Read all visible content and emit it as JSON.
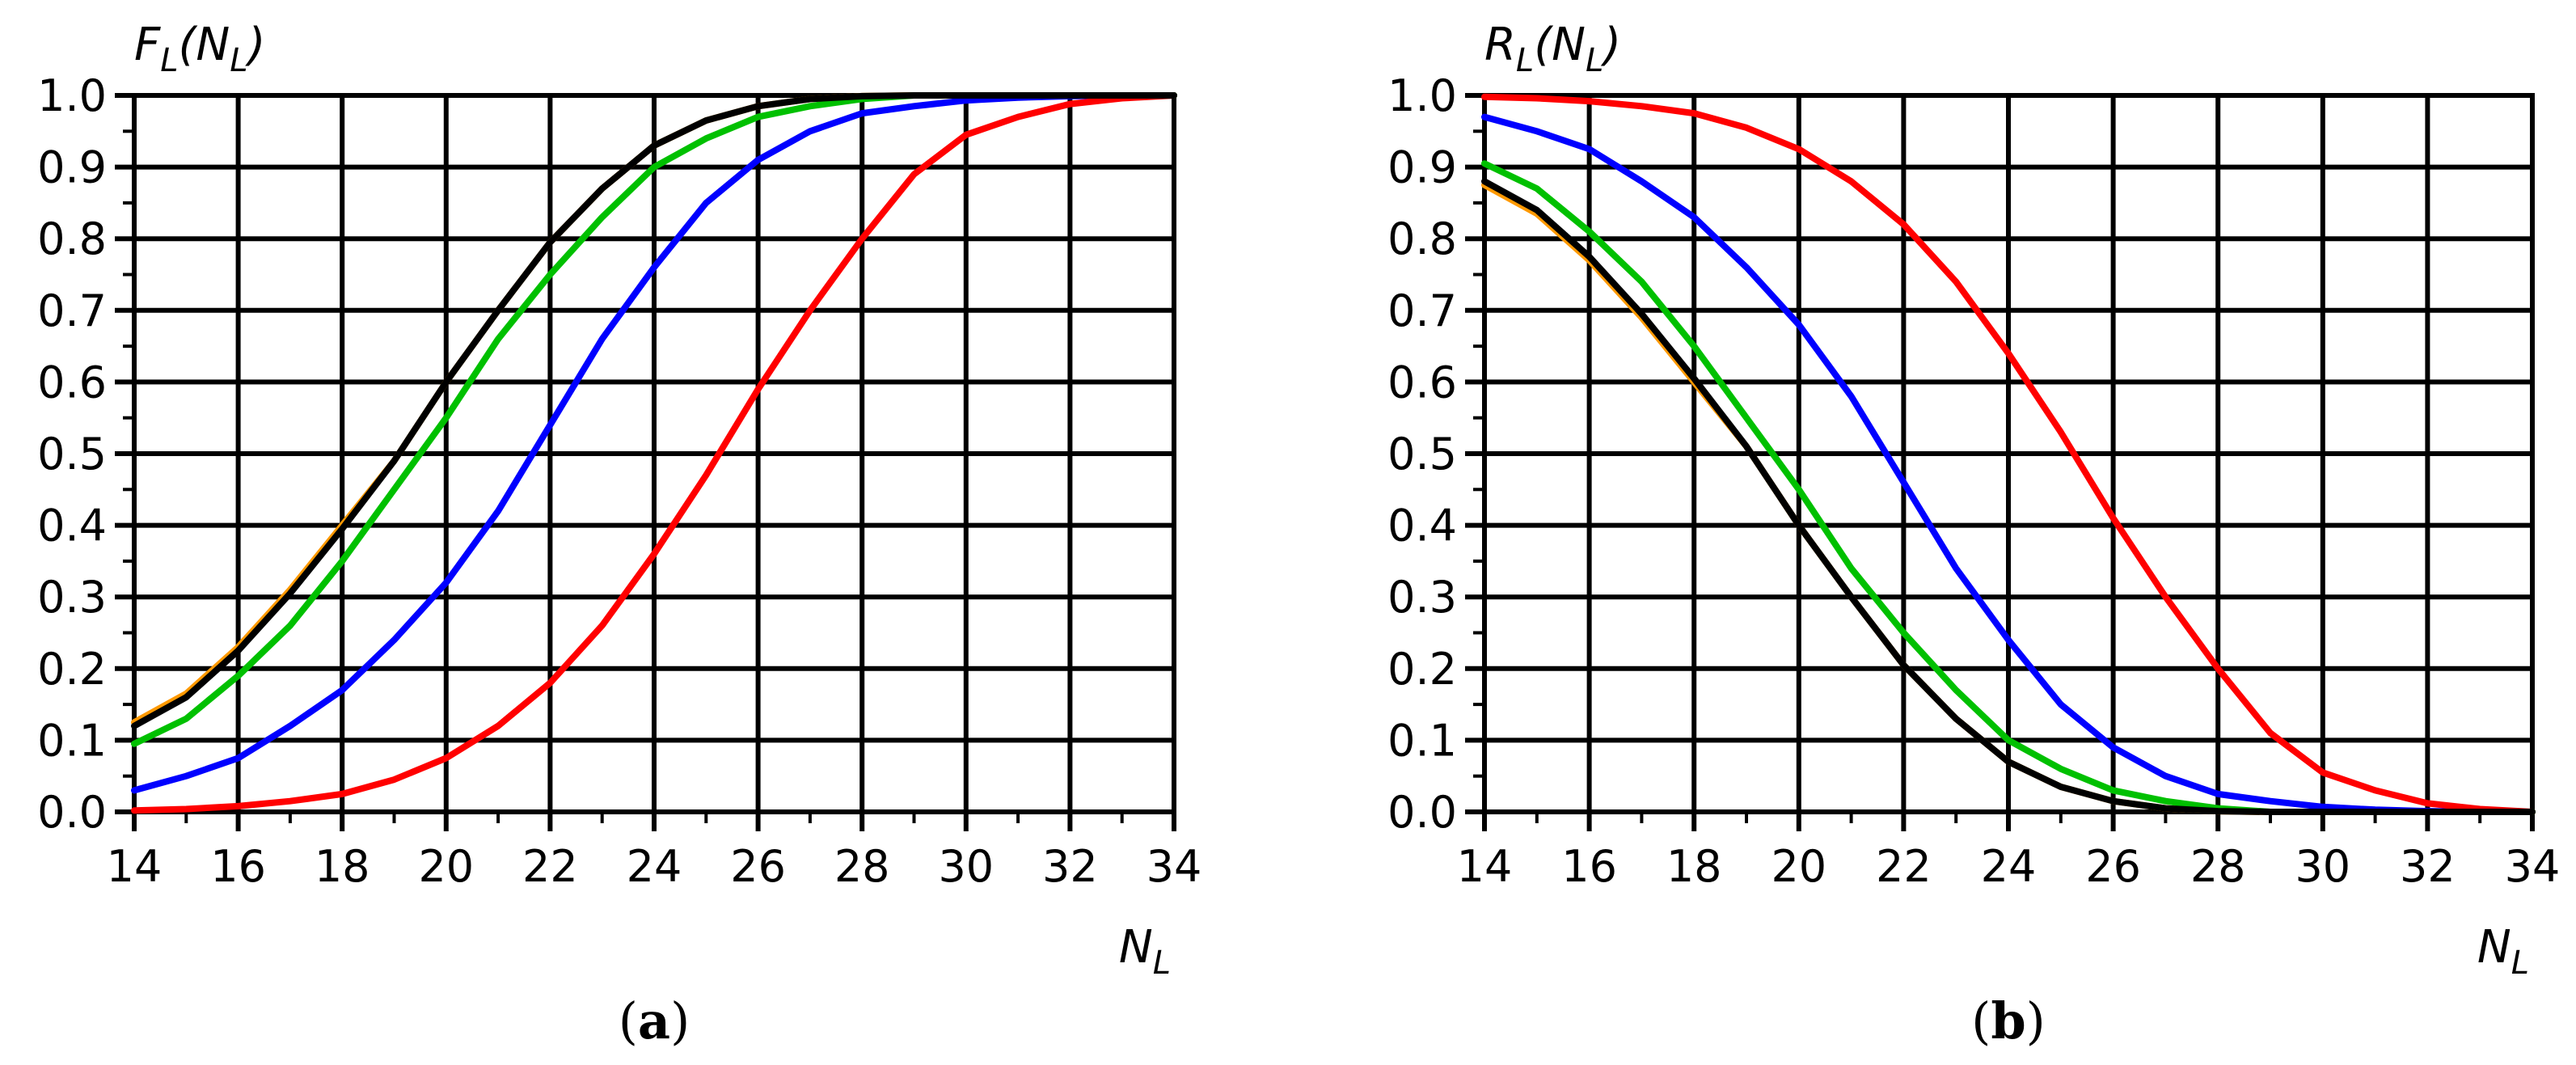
{
  "chart_data": [
    {
      "type": "line",
      "panel": "a",
      "panel_label": "(a)",
      "panel_letter": "a",
      "ylabel": "F_L(N_L)",
      "ylabel_main": "F",
      "ylabel_sub": "L",
      "ylabel_arg_main": "N",
      "ylabel_arg_sub": "L",
      "xlabel_main": "N",
      "xlabel_sub": "L",
      "xlim": [
        14,
        34
      ],
      "ylim": [
        0,
        1
      ],
      "grid": true,
      "xticks": [
        14,
        16,
        18,
        20,
        22,
        24,
        26,
        28,
        30,
        32,
        34
      ],
      "xtick_labels": [
        "14",
        "16",
        "18",
        "20",
        "22",
        "24",
        "26",
        "28",
        "30",
        "32",
        "34"
      ],
      "yticks": [
        0,
        0.1,
        0.2,
        0.3,
        0.4,
        0.5,
        0.6,
        0.7,
        0.8,
        0.9,
        1.0
      ],
      "ytick_labels": [
        "0.0",
        "0.1",
        "0.2",
        "0.3",
        "0.4",
        "0.5",
        "0.6",
        "0.7",
        "0.8",
        "0.9",
        "1.0"
      ],
      "x": [
        14,
        15,
        16,
        17,
        18,
        19,
        20,
        21,
        22,
        23,
        24,
        25,
        26,
        27,
        28,
        29,
        30,
        31,
        32,
        33,
        34
      ],
      "series": [
        {
          "name": "blue",
          "color": "#0000ff",
          "values": [
            0.03,
            0.05,
            0.075,
            0.12,
            0.17,
            0.24,
            0.32,
            0.42,
            0.54,
            0.66,
            0.76,
            0.85,
            0.91,
            0.95,
            0.975,
            0.985,
            0.993,
            0.997,
            0.999,
            1.0,
            1.0
          ]
        },
        {
          "name": "red",
          "color": "#ff0000",
          "values": [
            0.002,
            0.004,
            0.008,
            0.015,
            0.025,
            0.045,
            0.075,
            0.12,
            0.18,
            0.26,
            0.36,
            0.47,
            0.59,
            0.7,
            0.8,
            0.89,
            0.945,
            0.97,
            0.988,
            0.996,
            1.0
          ]
        },
        {
          "name": "orange",
          "color": "#ff9900",
          "values": [
            0.125,
            0.165,
            0.23,
            0.31,
            0.4,
            0.49,
            0.6,
            0.7,
            0.795,
            0.87,
            0.93,
            0.965,
            0.985,
            0.995,
            0.999,
            1.0,
            1.0,
            1.0,
            1.0,
            1.0,
            1.0
          ]
        },
        {
          "name": "green",
          "color": "#00c000",
          "values": [
            0.095,
            0.13,
            0.19,
            0.26,
            0.35,
            0.45,
            0.55,
            0.66,
            0.75,
            0.83,
            0.9,
            0.94,
            0.97,
            0.985,
            0.995,
            1.0,
            1.0,
            1.0,
            1.0,
            1.0,
            1.0
          ]
        },
        {
          "name": "black",
          "color": "#000000",
          "values": [
            0.12,
            0.16,
            0.225,
            0.305,
            0.395,
            0.49,
            0.6,
            0.7,
            0.795,
            0.87,
            0.93,
            0.965,
            0.985,
            0.995,
            0.999,
            1.0,
            1.0,
            1.0,
            1.0,
            1.0,
            1.0
          ]
        }
      ]
    },
    {
      "type": "line",
      "panel": "b",
      "panel_label": "(b)",
      "panel_letter": "b",
      "ylabel": "R_L(N_L)",
      "ylabel_main": "R",
      "ylabel_sub": "L",
      "ylabel_arg_main": "N",
      "ylabel_arg_sub": "L",
      "xlabel_main": "N",
      "xlabel_sub": "L",
      "xlim": [
        14,
        34
      ],
      "ylim": [
        0,
        1
      ],
      "grid": true,
      "xticks": [
        14,
        16,
        18,
        20,
        22,
        24,
        26,
        28,
        30,
        32,
        34
      ],
      "xtick_labels": [
        "14",
        "16",
        "18",
        "20",
        "22",
        "24",
        "26",
        "28",
        "30",
        "32",
        "34"
      ],
      "yticks": [
        0,
        0.1,
        0.2,
        0.3,
        0.4,
        0.5,
        0.6,
        0.7,
        0.8,
        0.9,
        1.0
      ],
      "ytick_labels": [
        "0.0",
        "0.1",
        "0.2",
        "0.3",
        "0.4",
        "0.5",
        "0.6",
        "0.7",
        "0.8",
        "0.9",
        "1.0"
      ],
      "x": [
        14,
        15,
        16,
        17,
        18,
        19,
        20,
        21,
        22,
        23,
        24,
        25,
        26,
        27,
        28,
        29,
        30,
        31,
        32,
        33,
        34
      ],
      "series": [
        {
          "name": "blue",
          "color": "#0000ff",
          "values": [
            0.97,
            0.95,
            0.925,
            0.88,
            0.83,
            0.76,
            0.68,
            0.58,
            0.46,
            0.34,
            0.24,
            0.15,
            0.09,
            0.05,
            0.025,
            0.015,
            0.007,
            0.003,
            0.001,
            0.0,
            0.0
          ]
        },
        {
          "name": "red",
          "color": "#ff0000",
          "values": [
            0.998,
            0.996,
            0.992,
            0.985,
            0.975,
            0.955,
            0.925,
            0.88,
            0.82,
            0.74,
            0.64,
            0.53,
            0.41,
            0.3,
            0.2,
            0.11,
            0.055,
            0.03,
            0.012,
            0.004,
            0.0
          ]
        },
        {
          "name": "orange",
          "color": "#ff9900",
          "values": [
            0.875,
            0.835,
            0.77,
            0.69,
            0.6,
            0.51,
            0.4,
            0.3,
            0.205,
            0.13,
            0.07,
            0.035,
            0.015,
            0.005,
            0.001,
            0.0,
            0.0,
            0.0,
            0.0,
            0.0,
            0.0
          ]
        },
        {
          "name": "green",
          "color": "#00c000",
          "values": [
            0.905,
            0.87,
            0.81,
            0.74,
            0.65,
            0.55,
            0.45,
            0.34,
            0.25,
            0.17,
            0.1,
            0.06,
            0.03,
            0.015,
            0.005,
            0.0,
            0.0,
            0.0,
            0.0,
            0.0,
            0.0
          ]
        },
        {
          "name": "black",
          "color": "#000000",
          "values": [
            0.88,
            0.84,
            0.775,
            0.695,
            0.605,
            0.51,
            0.4,
            0.3,
            0.205,
            0.13,
            0.07,
            0.035,
            0.015,
            0.005,
            0.001,
            0.0,
            0.0,
            0.0,
            0.0,
            0.0,
            0.0
          ]
        }
      ]
    }
  ]
}
